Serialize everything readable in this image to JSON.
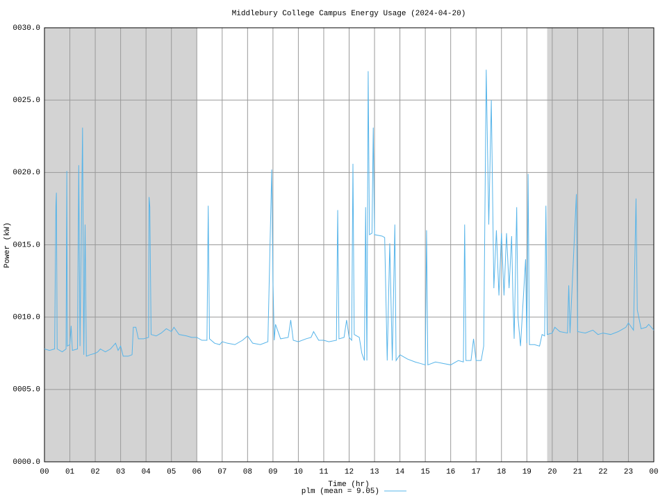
{
  "chart_data": {
    "type": "line",
    "title": "Middlebury College Campus Energy Usage (2024-04-20)",
    "x_label": "Time (hr)",
    "y_label": "Power (kW)",
    "xlim": [
      0,
      24
    ],
    "ylim": [
      0,
      30
    ],
    "xticks": [
      {
        "value": 0,
        "label": "00"
      },
      {
        "value": 1,
        "label": "01"
      },
      {
        "value": 2,
        "label": "02"
      },
      {
        "value": 3,
        "label": "03"
      },
      {
        "value": 4,
        "label": "04"
      },
      {
        "value": 5,
        "label": "05"
      },
      {
        "value": 6,
        "label": "06"
      },
      {
        "value": 7,
        "label": "07"
      },
      {
        "value": 8,
        "label": "08"
      },
      {
        "value": 9,
        "label": "09"
      },
      10,
      11,
      12,
      13,
      14,
      15,
      16,
      17,
      18,
      19,
      20,
      21,
      22,
      23,
      {
        "value": 24,
        "label": "00"
      }
    ],
    "yticks": [
      {
        "value": 0,
        "label": "0000.0"
      },
      {
        "value": 5,
        "label": "0005.0"
      },
      {
        "value": 10,
        "label": "0010.0"
      },
      {
        "value": 15,
        "label": "0015.0"
      },
      {
        "value": 20,
        "label": "0020.0"
      },
      {
        "value": 25,
        "label": "0025.0"
      },
      {
        "value": 30,
        "label": "0030.0"
      }
    ],
    "grid": true,
    "shaded_regions": [
      {
        "from": 0,
        "to": 6
      },
      {
        "from": 19.8,
        "to": 24
      }
    ],
    "shade_color": "#d3d3d3",
    "legend": "bottom",
    "x": [
      0.0,
      0.2,
      0.4,
      0.45,
      0.47,
      0.5,
      0.7,
      0.85,
      0.88,
      0.9,
      1.0,
      1.05,
      1.1,
      1.3,
      1.35,
      1.4,
      1.45,
      1.5,
      1.55,
      1.6,
      1.65,
      1.8,
      2.0,
      2.1,
      2.2,
      2.4,
      2.6,
      2.8,
      2.9,
      3.0,
      3.1,
      3.3,
      3.45,
      3.5,
      3.6,
      3.7,
      3.9,
      4.1,
      4.12,
      4.15,
      4.2,
      4.4,
      4.6,
      4.8,
      5.0,
      5.1,
      5.3,
      5.6,
      5.8,
      6.0,
      6.2,
      6.4,
      6.45,
      6.5,
      6.7,
      6.9,
      7.0,
      7.2,
      7.5,
      7.8,
      8.0,
      8.2,
      8.5,
      8.8,
      8.95,
      9.0,
      9.05,
      9.1,
      9.3,
      9.6,
      9.7,
      9.8,
      10.0,
      10.3,
      10.5,
      10.6,
      10.8,
      11.0,
      11.2,
      11.5,
      11.55,
      11.6,
      11.8,
      11.9,
      12.0,
      12.1,
      12.15,
      12.2,
      12.4,
      12.5,
      12.6,
      12.65,
      12.7,
      12.75,
      12.8,
      12.9,
      12.95,
      13.0,
      13.3,
      13.4,
      13.5,
      13.6,
      13.7,
      13.8,
      13.85,
      14.0,
      14.3,
      14.6,
      14.8,
      15.0,
      15.05,
      15.1,
      15.4,
      15.7,
      16.0,
      16.3,
      16.5,
      16.55,
      16.6,
      16.8,
      16.9,
      17.0,
      17.2,
      17.3,
      17.4,
      17.5,
      17.6,
      17.7,
      17.8,
      17.9,
      18.0,
      18.1,
      18.2,
      18.3,
      18.4,
      18.45,
      18.5,
      18.6,
      18.65,
      18.75,
      18.8,
      18.95,
      19.0,
      19.05,
      19.1,
      19.3,
      19.5,
      19.6,
      19.7,
      19.75,
      19.8,
      20.0,
      20.1,
      20.3,
      20.6,
      20.65,
      20.7,
      20.95,
      21.0,
      21.3,
      21.6,
      21.8,
      22.0,
      22.3,
      22.6,
      22.9,
      23.0,
      23.2,
      23.3,
      23.35,
      23.5,
      23.7,
      23.8,
      24.0
    ],
    "series": [
      {
        "name": "plm (mean = 9.05)",
        "color": "#56b4e9",
        "values": [
          7.8,
          7.7,
          7.8,
          17.7,
          18.6,
          7.8,
          7.6,
          7.8,
          20.1,
          8.0,
          8.1,
          9.4,
          7.7,
          7.8,
          20.5,
          8.0,
          15.3,
          23.1,
          7.4,
          16.4,
          7.3,
          7.4,
          7.5,
          7.6,
          7.8,
          7.6,
          7.8,
          8.2,
          7.7,
          8.0,
          7.3,
          7.3,
          7.4,
          9.3,
          9.3,
          8.5,
          8.5,
          8.6,
          18.3,
          17.6,
          8.8,
          8.7,
          8.9,
          9.2,
          9.0,
          9.3,
          8.8,
          8.7,
          8.6,
          8.6,
          8.4,
          8.4,
          17.7,
          8.5,
          8.2,
          8.1,
          8.3,
          8.2,
          8.1,
          8.4,
          8.7,
          8.2,
          8.1,
          8.3,
          20.2,
          12.5,
          8.4,
          9.5,
          8.5,
          8.6,
          9.8,
          8.4,
          8.3,
          8.5,
          8.6,
          9.0,
          8.4,
          8.4,
          8.3,
          8.4,
          17.4,
          8.5,
          8.6,
          9.8,
          8.6,
          8.4,
          20.6,
          8.8,
          8.6,
          7.5,
          7.0,
          17.6,
          7.0,
          27.0,
          15.7,
          15.8,
          23.1,
          15.7,
          15.6,
          15.5,
          7.0,
          15.1,
          7.0,
          16.4,
          7.0,
          7.4,
          7.1,
          6.9,
          6.8,
          6.7,
          16.0,
          6.7,
          6.9,
          6.8,
          6.7,
          7.0,
          6.9,
          16.4,
          7.0,
          7.0,
          8.5,
          7.0,
          7.0,
          8.0,
          27.1,
          16.4,
          25.0,
          12.0,
          16.0,
          11.5,
          15.8,
          11.5,
          15.8,
          12.0,
          15.6,
          11.5,
          8.5,
          17.6,
          10.0,
          8.0,
          9.5,
          14.0,
          8.2,
          19.9,
          8.1,
          8.1,
          8.0,
          8.8,
          8.7,
          17.7,
          8.8,
          8.9,
          9.3,
          9.0,
          8.9,
          12.2,
          8.9,
          18.5,
          9.0,
          8.9,
          9.1,
          8.8,
          8.9,
          8.8,
          9.0,
          9.3,
          9.6,
          9.1,
          18.2,
          10.5,
          9.2,
          9.3,
          9.5,
          9.1
        ]
      }
    ]
  }
}
